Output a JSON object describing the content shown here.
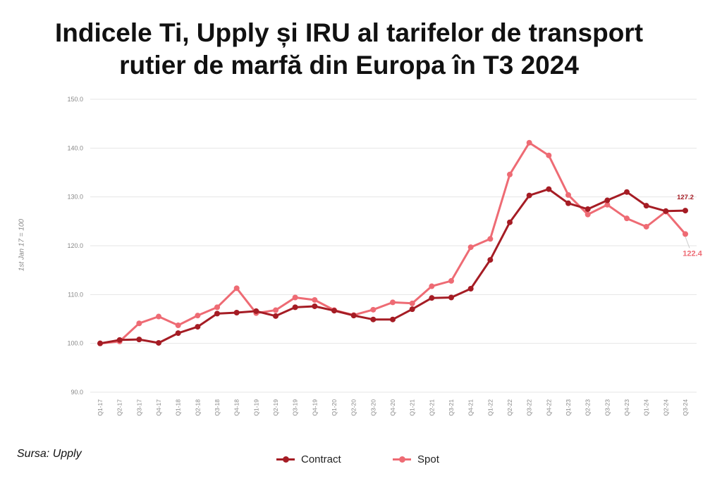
{
  "title_lines": [
    "Indicele Ti, Upply și IRU al tarifelor de transport",
    "rutier de marfă din Europa în T3 2024"
  ],
  "source": "Sursa: Upply",
  "colors": {
    "contract": "#a51c24",
    "spot": "#ee6b74",
    "grid": "#e6e6e6",
    "tick": "#888888"
  },
  "chart_data": {
    "type": "line",
    "title": "Indicele Ti, Upply și IRU al tarifelor de transport rutier de marfă din Europa în T3 2024",
    "xlabel": "",
    "ylabel": "1st Jan 17 = 100",
    "ylim": [
      90,
      150
    ],
    "yticks": [
      90,
      100,
      110,
      120,
      130,
      140,
      150
    ],
    "ytick_labels": [
      "90.0",
      "100.0",
      "110.0",
      "120.0",
      "130.0",
      "140.0",
      "150.0"
    ],
    "grid": true,
    "legend_position": "bottom-center",
    "categories": [
      "Q1-17",
      "Q2-17",
      "Q3-17",
      "Q4-17",
      "Q1-18",
      "Q2-18",
      "Q3-18",
      "Q4-18",
      "Q1-19",
      "Q2-19",
      "Q3-19",
      "Q4-19",
      "Q1-20",
      "Q2-20",
      "Q3-20",
      "Q4-20",
      "Q1-21",
      "Q2-21",
      "Q3-21",
      "Q4-21",
      "Q1-22",
      "Q2-22",
      "Q3-22",
      "Q4-22",
      "Q1-23",
      "Q2-23",
      "Q3-23",
      "Q4-23",
      "Q1-24",
      "Q2-24",
      "Q3-24"
    ],
    "series": [
      {
        "name": "Contract",
        "color": "#a51c24",
        "values": [
          100.0,
          100.7,
          100.8,
          100.1,
          102.1,
          103.4,
          106.1,
          106.3,
          106.6,
          105.6,
          107.4,
          107.6,
          106.7,
          105.7,
          104.9,
          104.9,
          107.0,
          109.3,
          109.4,
          111.2,
          117.1,
          124.8,
          130.3,
          131.6,
          128.7,
          127.5,
          129.3,
          131.0,
          128.2,
          127.1,
          127.2
        ],
        "end_label": "127.2"
      },
      {
        "name": "Spot",
        "color": "#ee6b74",
        "values": [
          100.0,
          100.4,
          104.1,
          105.5,
          103.7,
          105.7,
          107.4,
          111.3,
          106.2,
          106.8,
          109.4,
          108.9,
          106.8,
          105.8,
          106.9,
          108.4,
          108.2,
          111.7,
          112.8,
          119.7,
          121.4,
          134.6,
          141.1,
          138.5,
          130.4,
          126.4,
          128.4,
          125.6,
          123.9,
          127.0,
          122.4
        ],
        "end_label": "122.4"
      }
    ]
  }
}
